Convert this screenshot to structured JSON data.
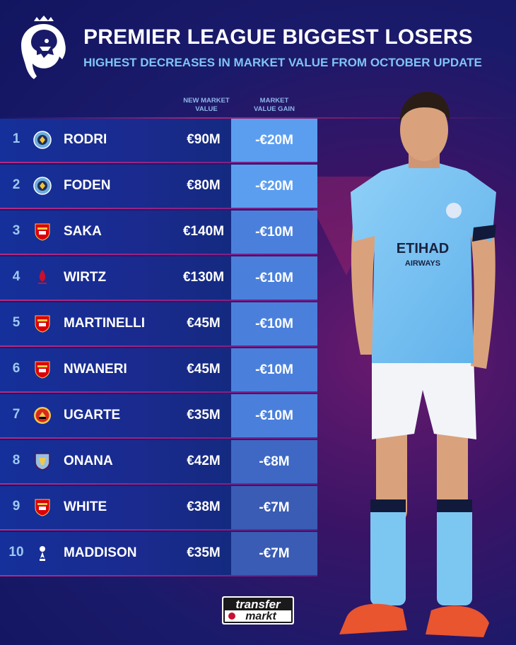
{
  "header": {
    "title": "PREMIER LEAGUE BIGGEST LOSERS",
    "subtitle": "HIGHEST DECREASES IN MARKET VALUE FROM OCTOBER UPDATE"
  },
  "columns": {
    "market_value": [
      "NEW MARKET",
      "VALUE"
    ],
    "gain": [
      "MARKET",
      "VALUE GAIN"
    ]
  },
  "rows": [
    {
      "rank": "1",
      "crest": "man-city-crest-icon",
      "name": "RODRI",
      "market_value": "€90M",
      "gain": "-€20M",
      "gain_color": "#5b9ef0"
    },
    {
      "rank": "2",
      "crest": "man-city-crest-icon",
      "name": "FODEN",
      "market_value": "€80M",
      "gain": "-€20M",
      "gain_color": "#5b9ef0"
    },
    {
      "rank": "3",
      "crest": "arsenal-crest-icon",
      "name": "SAKA",
      "market_value": "€140M",
      "gain": "-€10M",
      "gain_color": "#4a80dc"
    },
    {
      "rank": "4",
      "crest": "liverpool-crest-icon",
      "name": "WIRTZ",
      "market_value": "€130M",
      "gain": "-€10M",
      "gain_color": "#4a80dc"
    },
    {
      "rank": "5",
      "crest": "arsenal-crest-icon",
      "name": "MARTINELLI",
      "market_value": "€45M",
      "gain": "-€10M",
      "gain_color": "#4a80dc"
    },
    {
      "rank": "6",
      "crest": "arsenal-crest-icon",
      "name": "NWANERI",
      "market_value": "€45M",
      "gain": "-€10M",
      "gain_color": "#4a80dc"
    },
    {
      "rank": "7",
      "crest": "man-united-crest-icon",
      "name": "UGARTE",
      "market_value": "€35M",
      "gain": "-€10M",
      "gain_color": "#4a80dc"
    },
    {
      "rank": "8",
      "crest": "aston-villa-crest-icon",
      "name": "ONANA",
      "market_value": "€42M",
      "gain": "-€8M",
      "gain_color": "#3e68c4"
    },
    {
      "rank": "9",
      "crest": "arsenal-crest-icon",
      "name": "WHITE",
      "market_value": "€38M",
      "gain": "-€7M",
      "gain_color": "#3a5cb4"
    },
    {
      "rank": "10",
      "crest": "tottenham-crest-icon",
      "name": "MADDISON",
      "market_value": "€35M",
      "gain": "-€7M",
      "gain_color": "#3a5cb4"
    }
  ],
  "player_image": {
    "shirt_sponsor": [
      "ETIHAD",
      "AIRWAYS"
    ]
  },
  "footer": {
    "brand_top": "transfer",
    "brand_bottom": "markt"
  },
  "colors": {
    "accent": "#7fc4f4",
    "stripe": "#b82a84",
    "row_base": "#15309a"
  }
}
